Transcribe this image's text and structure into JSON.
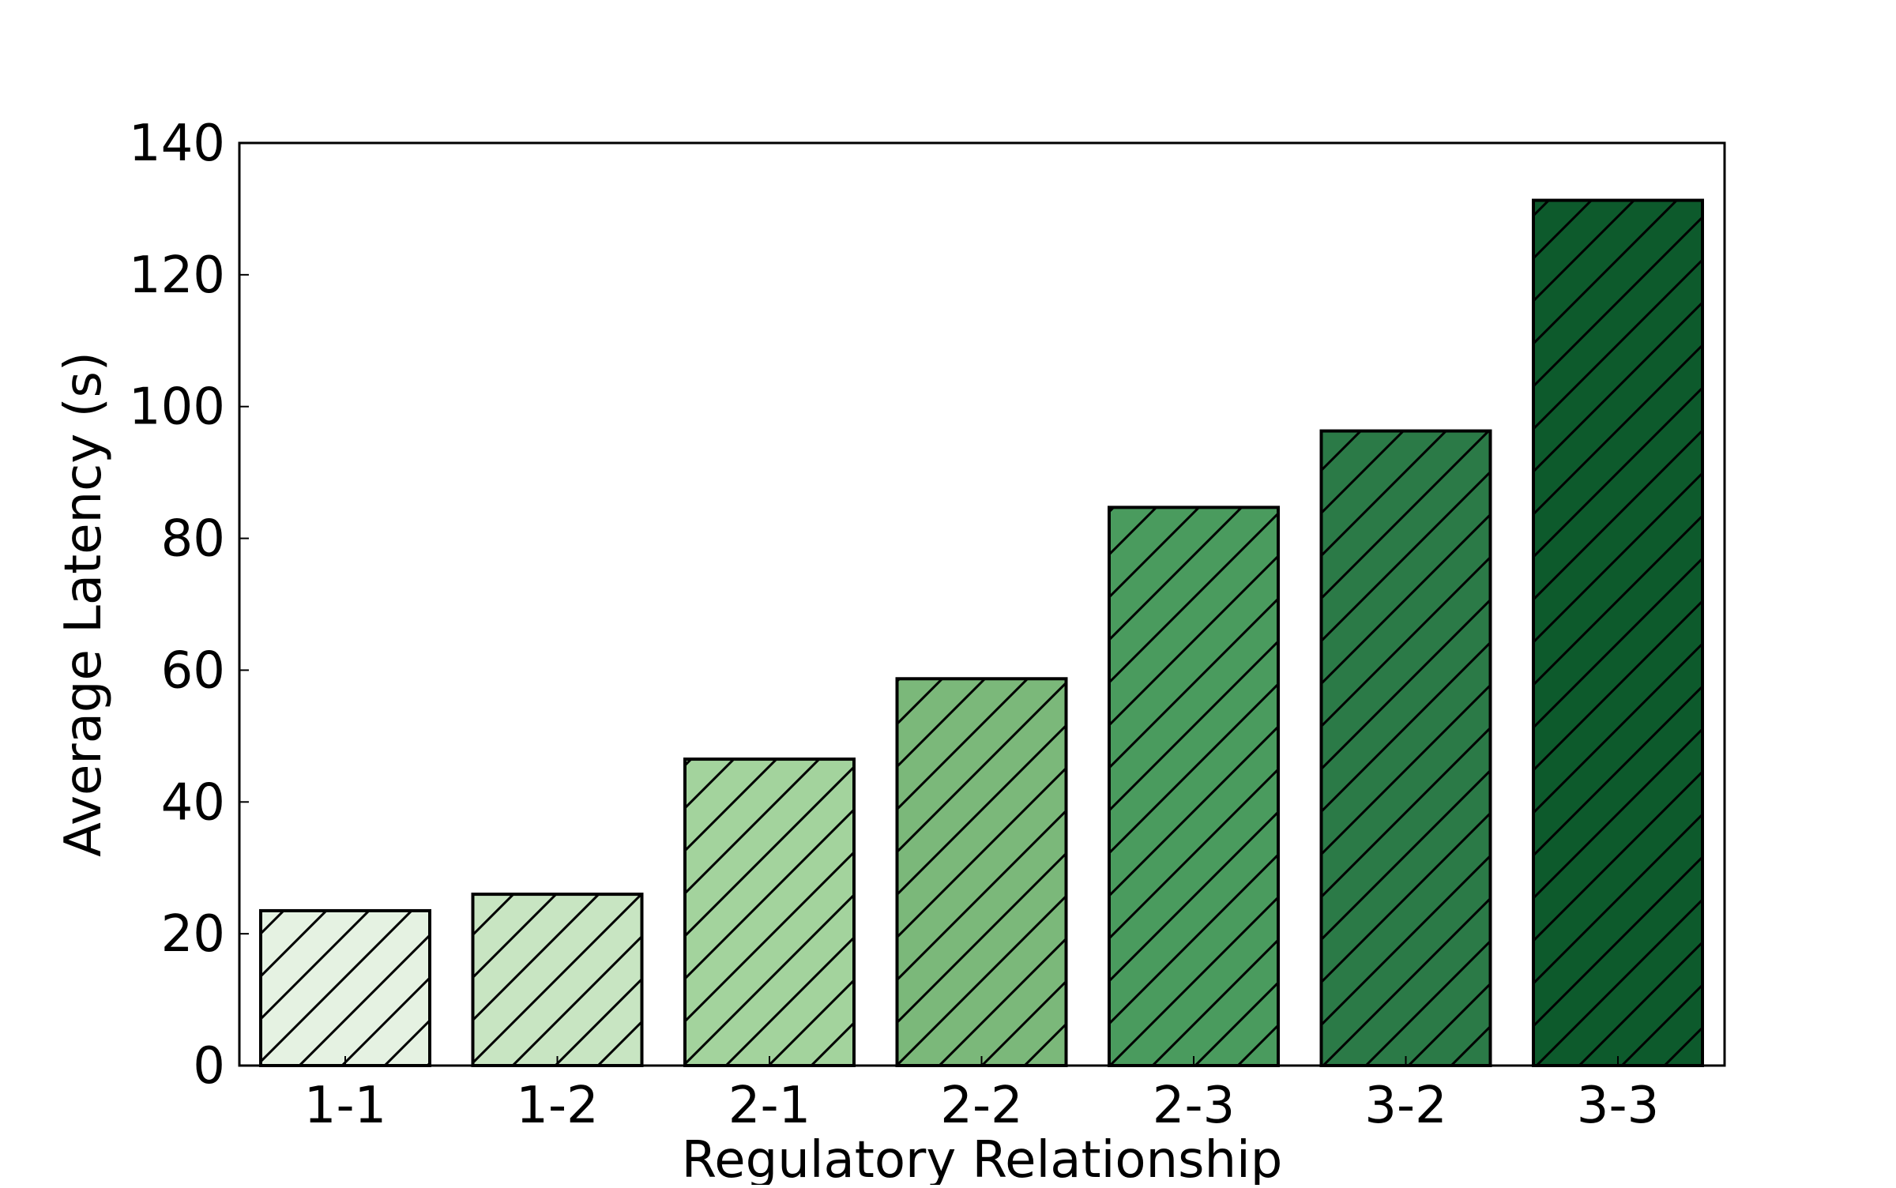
{
  "chart_data": {
    "type": "bar",
    "title": "",
    "xlabel": "Regulatory Relationship",
    "ylabel": "Average Latency (s)",
    "categories": [
      "1-1",
      "1-2",
      "2-1",
      "2-2",
      "2-3",
      "3-2",
      "3-3"
    ],
    "values": [
      23.5,
      26.0,
      46.5,
      58.7,
      84.7,
      96.3,
      131.3
    ],
    "ylim": [
      0,
      140
    ],
    "yticks": [
      0,
      20,
      40,
      60,
      80,
      100,
      120,
      140
    ],
    "grid": false,
    "legend": "none",
    "hatch": "diagonal",
    "colors": [
      "#e5f2e2",
      "#c8e5c2",
      "#a3d39d",
      "#7bb87a",
      "#4a9b5e",
      "#2b7a47",
      "#0d5a2c"
    ],
    "edge_color": "#000000"
  }
}
